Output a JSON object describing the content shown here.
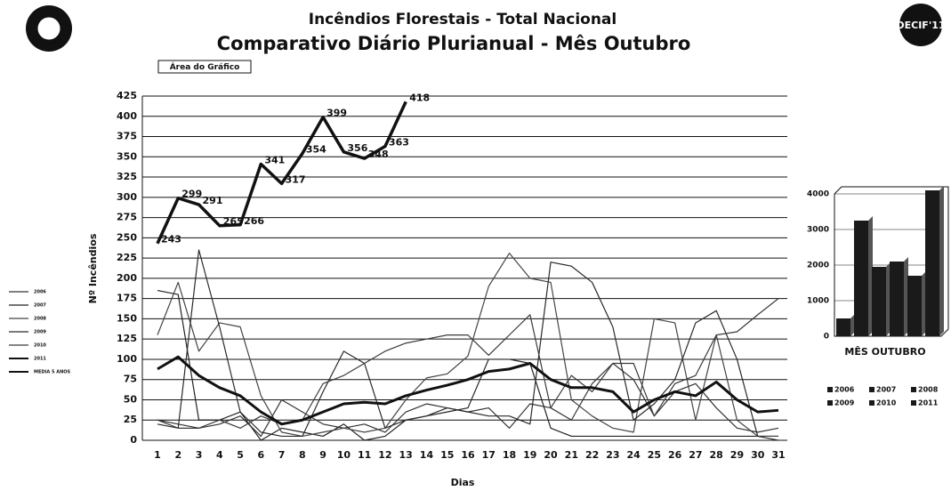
{
  "logo": "DECIF'11",
  "chart_data": [
    {
      "type": "line",
      "title": "Incêndios Florestais - Total Nacional",
      "subtitle": "Comparativo Diário Plurianual - Mês Outubro",
      "annotation": "Área do Gráfico",
      "y_label": "Nº Incêndios",
      "x_label": "Dias",
      "categories": [
        "1",
        "2",
        "3",
        "4",
        "5",
        "6",
        "7",
        "8",
        "9",
        "10",
        "11",
        "12",
        "13",
        "14",
        "15",
        "16",
        "17",
        "18",
        "19",
        "20",
        "21",
        "22",
        "23",
        "24",
        "25",
        "26",
        "27",
        "28",
        "29",
        "30",
        "31"
      ],
      "ylim": [
        0,
        425
      ],
      "yticks": [
        0,
        25,
        50,
        75,
        100,
        125,
        150,
        175,
        200,
        225,
        250,
        275,
        300,
        325,
        350,
        375,
        400,
        425
      ],
      "grid": true,
      "series": [
        {
          "name": "2006",
          "color": "#333333",
          "line_width": 1.2,
          "values": [
            25,
            20,
            15,
            20,
            30,
            5,
            50,
            35,
            20,
            15,
            20,
            10,
            35,
            45,
            40,
            35,
            40,
            15,
            45,
            40,
            25,
            70,
            95,
            75,
            30,
            60,
            70,
            40,
            15,
            10,
            15
          ]
        },
        {
          "name": "2007",
          "color": "#222222",
          "line_width": 1.2,
          "values": [
            185,
            180,
            25,
            25,
            35,
            0,
            15,
            10,
            5,
            20,
            0,
            5,
            25,
            30,
            35,
            40,
            100,
            100,
            95,
            15,
            5,
            5,
            5,
            5,
            5,
            5,
            5,
            5,
            5,
            5,
            5
          ]
        },
        {
          "name": "2008",
          "color": "#444444",
          "line_width": 1.2,
          "values": [
            130,
            195,
            110,
            145,
            140,
            55,
            10,
            5,
            10,
            15,
            10,
            15,
            50,
            77,
            82,
            104,
            190,
            231,
            200,
            195,
            50,
            30,
            15,
            10,
            150,
            145,
            25,
            130,
            25,
            5,
            5
          ]
        },
        {
          "name": "2009",
          "color": "#2a2a2a",
          "line_width": 1.2,
          "values": [
            20,
            15,
            235,
            140,
            35,
            10,
            5,
            5,
            60,
            110,
            95,
            15,
            25,
            30,
            40,
            35,
            30,
            30,
            20,
            220,
            215,
            195,
            140,
            25,
            45,
            75,
            145,
            160,
            100,
            5,
            0
          ]
        },
        {
          "name": "2010",
          "color": "#3a3a3a",
          "line_width": 1.2,
          "values": [
            25,
            15,
            15,
            25,
            15,
            30,
            20,
            25,
            70,
            80,
            95,
            110,
            120,
            125,
            130,
            130,
            105,
            130,
            155,
            40,
            80,
            60,
            95,
            95,
            30,
            70,
            80,
            130,
            134,
            155,
            175
          ]
        },
        {
          "name": "2011",
          "color": "#111111",
          "line_width": 3.5,
          "data_labels": true,
          "values": [
            243,
            299,
            291,
            265,
            266,
            341,
            317,
            354,
            399,
            356,
            348,
            363,
            418,
            null,
            null,
            null,
            null,
            null,
            null,
            null,
            null,
            null,
            null,
            null,
            null,
            null,
            null,
            null,
            null,
            null,
            null
          ]
        },
        {
          "name": "MEDIA 5 ANOS",
          "color": "#111111",
          "line_width": 3,
          "values": [
            88,
            103,
            80,
            65,
            55,
            35,
            20,
            25,
            35,
            45,
            47,
            45,
            55,
            62,
            68,
            75,
            85,
            88,
            95,
            75,
            65,
            65,
            60,
            35,
            50,
            60,
            55,
            72,
            50,
            35,
            37
          ]
        }
      ]
    },
    {
      "type": "bar",
      "title": "MÊS OUTUBRO",
      "categories": [
        "2006",
        "2007",
        "2008",
        "2009",
        "2010",
        "2011"
      ],
      "values": [
        500,
        3250,
        1950,
        2100,
        1700,
        4100
      ],
      "color": "#1a1a1a",
      "ylim": [
        0,
        4000
      ],
      "yticks": [
        0,
        1000,
        2000,
        3000,
        4000
      ]
    }
  ]
}
